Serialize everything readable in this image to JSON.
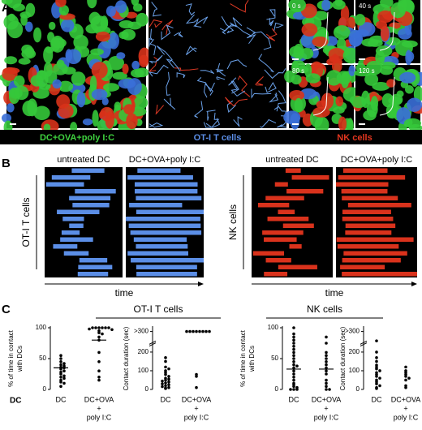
{
  "panel_a": {
    "label": "A",
    "time_labels": [
      "0 s",
      "40 s",
      "80 s",
      "120 s"
    ],
    "captions": [
      {
        "text": "DC+OVA+poly I:C",
        "color": "#3fd23f"
      },
      {
        "text": "OT-I T cells",
        "color": "#5b8ee6"
      },
      {
        "text": "NK cells",
        "color": "#e2361f"
      }
    ]
  },
  "panel_b": {
    "label": "B",
    "left": {
      "y_label": "OT-I T cells",
      "x_label": "time",
      "titles": [
        "untreated DC",
        "DC+OVA+poly I:C"
      ],
      "color": "#5b8ee6"
    },
    "right": {
      "y_label": "NK cells",
      "x_label": "time",
      "titles": [
        "untreated DC",
        "DC+OVA+poly I:C"
      ],
      "color": "#d9321c"
    }
  },
  "panel_c": {
    "label": "C",
    "group_titles": [
      "OT-I T cells",
      "NK cells"
    ],
    "extra_label": "DC",
    "charts": [
      {
        "type": "dot",
        "y_label": [
          "% of time in contact",
          "with DCs"
        ],
        "categories": [
          [
            "DC"
          ],
          [
            "DC+OVA",
            "+",
            "poly I:C"
          ]
        ],
        "ylim": [
          0,
          100
        ],
        "yticks": [
          0,
          50,
          100
        ],
        "means": [
          35,
          80
        ],
        "series": [
          {
            "values": [
              55,
              50,
              45,
              42,
              40,
              38,
              36,
              35,
              33,
              30,
              28,
              25,
              22,
              20,
              18,
              15,
              12,
              10,
              5
            ]
          },
          {
            "values": [
              100,
              100,
              100,
              100,
              100,
              100,
              98,
              97,
              95,
              92,
              90,
              85,
              80,
              60,
              45,
              30,
              20,
              15
            ]
          }
        ]
      },
      {
        "type": "dot",
        "y_label": [
          "Contact duration (sec)"
        ],
        "categories": [
          [
            "DC"
          ],
          [
            "DC+OVA",
            "+",
            "poly I:C"
          ]
        ],
        "ylim": [
          0,
          330
        ],
        "yticks": [
          0,
          100,
          200,
          {
            "value": 310,
            "label": ">300"
          }
        ],
        "axis_break": true,
        "series": [
          {
            "values": [
              5,
              8,
              10,
              15,
              20,
              25,
              30,
              35,
              40,
              45,
              50,
              55,
              60,
              70,
              80,
              90,
              100,
              110,
              120,
              150,
              170
            ]
          },
          {
            "values": [
              310,
              310,
              310,
              310,
              310,
              310,
              310,
              310,
              80,
              70,
              10
            ]
          }
        ]
      },
      {
        "type": "dot",
        "y_label": [
          "% of time in contact",
          "with DCs"
        ],
        "categories": [
          [
            "DC"
          ],
          [
            "DC+OVA",
            "+",
            "poly I:C"
          ]
        ],
        "ylim": [
          0,
          100
        ],
        "yticks": [
          0,
          50,
          100
        ],
        "means": [
          33,
          33
        ],
        "series": [
          {
            "values": [
              100,
              90,
              85,
              80,
              75,
              70,
              65,
              60,
              55,
              50,
              45,
              40,
              38,
              35,
              30,
              25,
              20,
              15,
              10,
              8,
              5,
              3,
              0,
              0,
              0
            ]
          },
          {
            "values": [
              85,
              75,
              60,
              55,
              50,
              45,
              40,
              35,
              30,
              25,
              15,
              10,
              5,
              0,
              0
            ]
          }
        ]
      },
      {
        "type": "dot",
        "y_label": [
          "Contact duration (sec)"
        ],
        "categories": [
          [
            "DC"
          ],
          [
            "DC+OVA",
            "+",
            "poly I:C"
          ]
        ],
        "ylim": [
          0,
          330
        ],
        "yticks": [
          0,
          100,
          200,
          {
            "value": 310,
            "label": ">300"
          }
        ],
        "axis_break": true,
        "series": [
          {
            "values": [
              260,
              200,
              170,
              150,
              130,
              120,
              110,
              100,
              90,
              80,
              70,
              60,
              50,
              40,
              30,
              20,
              10,
              5
            ]
          },
          {
            "values": [
              120,
              100,
              90,
              80,
              70,
              60,
              50,
              20,
              10
            ]
          }
        ]
      }
    ]
  }
}
